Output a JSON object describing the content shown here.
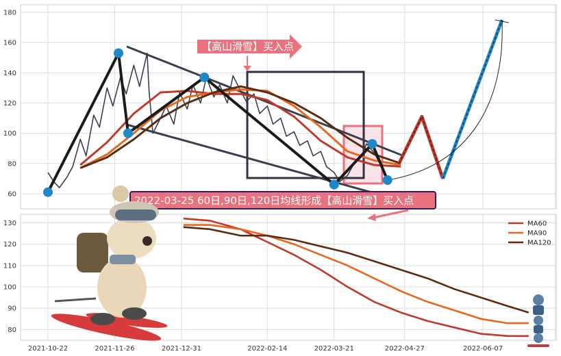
{
  "chart_data": [
    {
      "type": "line",
      "panel": "price",
      "ylim": [
        50,
        185
      ],
      "yticks": [
        60,
        80,
        100,
        120,
        140,
        160,
        180
      ],
      "grid": true,
      "x_dates": [
        "2021-10-22",
        "2021-11-26",
        "2021-12-31",
        "2022-02-14",
        "2022-03-21",
        "2022-04-27",
        "2022-06-07"
      ],
      "series": [
        {
          "role": "price",
          "color": "#3a3f4e",
          "points": [
            [
              "2021-10-22",
              74
            ],
            [
              "2021-10-25",
              68
            ],
            [
              "2021-10-28",
              64
            ],
            [
              "2021-11-01",
              71
            ],
            [
              "2021-11-04",
              78
            ],
            [
              "2021-11-08",
              96
            ],
            [
              "2021-11-11",
              85
            ],
            [
              "2021-11-15",
              112
            ],
            [
              "2021-11-18",
              104
            ],
            [
              "2021-11-22",
              130
            ],
            [
              "2021-11-25",
              118
            ],
            [
              "2021-11-29",
              137
            ],
            [
              "2021-12-02",
              126
            ],
            [
              "2021-12-06",
              145
            ],
            [
              "2021-12-09",
              131
            ],
            [
              "2021-12-13",
              153
            ],
            [
              "2021-12-14",
              128
            ],
            [
              "2021-12-16",
              100
            ],
            [
              "2021-12-20",
              110
            ],
            [
              "2021-12-23",
              118
            ],
            [
              "2021-12-27",
              106
            ],
            [
              "2021-12-30",
              127
            ],
            [
              "2022-01-03",
              116
            ],
            [
              "2022-01-06",
              132
            ],
            [
              "2022-01-10",
              120
            ],
            [
              "2022-01-13",
              137
            ],
            [
              "2022-01-17",
              124
            ],
            [
              "2022-01-20",
              132
            ],
            [
              "2022-01-24",
              120
            ],
            [
              "2022-01-27",
              138
            ],
            [
              "2022-01-31",
              128
            ],
            [
              "2022-02-03",
              121
            ],
            [
              "2022-02-07",
              126
            ],
            [
              "2022-02-10",
              113
            ],
            [
              "2022-02-14",
              118
            ],
            [
              "2022-02-17",
              106
            ],
            [
              "2022-02-21",
              110
            ],
            [
              "2022-02-24",
              98
            ],
            [
              "2022-02-28",
              101
            ],
            [
              "2022-03-03",
              92
            ],
            [
              "2022-03-07",
              95
            ],
            [
              "2022-03-10",
              85
            ],
            [
              "2022-03-14",
              88
            ],
            [
              "2022-03-17",
              78
            ],
            [
              "2022-03-21",
              74
            ],
            [
              "2022-03-24",
              68
            ],
            [
              "2022-03-28",
              72
            ],
            [
              "2022-03-31",
              79
            ],
            [
              "2022-04-04",
              84
            ],
            [
              "2022-04-07",
              93
            ],
            [
              "2022-04-11",
              87
            ],
            [
              "2022-04-14",
              80
            ],
            [
              "2022-04-18",
              69
            ]
          ]
        },
        {
          "role": "ma-red",
          "color": "#c0392b",
          "points": [
            [
              "2021-11-08",
              79
            ],
            [
              "2021-11-22",
              94
            ],
            [
              "2021-12-06",
              113
            ],
            [
              "2021-12-20",
              127
            ],
            [
              "2022-01-03",
              128
            ],
            [
              "2022-01-17",
              126
            ],
            [
              "2022-01-31",
              126
            ],
            [
              "2022-02-14",
              122
            ],
            [
              "2022-02-28",
              111
            ],
            [
              "2022-03-14",
              95
            ],
            [
              "2022-03-28",
              84
            ],
            [
              "2022-04-11",
              79
            ],
            [
              "2022-04-25",
              78
            ]
          ]
        },
        {
          "role": "ma-orange",
          "color": "#e8671e",
          "points": [
            [
              "2021-11-08",
              77
            ],
            [
              "2021-11-22",
              86
            ],
            [
              "2021-12-06",
              100
            ],
            [
              "2021-12-20",
              115
            ],
            [
              "2022-01-03",
              124
            ],
            [
              "2022-01-17",
              127
            ],
            [
              "2022-01-31",
              129
            ],
            [
              "2022-02-14",
              128
            ],
            [
              "2022-02-28",
              118
            ],
            [
              "2022-03-14",
              104
            ],
            [
              "2022-03-28",
              88
            ],
            [
              "2022-04-11",
              82
            ],
            [
              "2022-04-25",
              79
            ]
          ]
        },
        {
          "role": "ma-brown",
          "color": "#5a2c12",
          "points": [
            [
              "2021-11-08",
              77
            ],
            [
              "2021-11-22",
              84
            ],
            [
              "2021-12-06",
              96
            ],
            [
              "2021-12-20",
              110
            ],
            [
              "2022-01-03",
              120
            ],
            [
              "2022-01-17",
              127
            ],
            [
              "2022-01-31",
              131
            ],
            [
              "2022-02-14",
              127
            ],
            [
              "2022-02-28",
              120
            ],
            [
              "2022-03-14",
              110
            ],
            [
              "2022-03-28",
              97
            ],
            [
              "2022-04-11",
              86
            ],
            [
              "2022-04-25",
              80
            ]
          ]
        },
        {
          "role": "projection",
          "color": "#c0392b",
          "points": [
            [
              "2022-04-24",
              80
            ],
            [
              "2022-05-06",
              111
            ],
            [
              "2022-05-17",
              70
            ]
          ]
        },
        {
          "role": "projection-up",
          "color": "#1e88c8",
          "points": [
            [
              "2022-05-17",
              70
            ],
            [
              "2022-06-17",
              175
            ]
          ]
        }
      ],
      "pivots": [
        [
          "2021-10-22",
          61
        ],
        [
          "2021-11-28",
          153
        ],
        [
          "2021-12-03",
          100
        ],
        [
          "2022-01-12",
          137
        ],
        [
          "2022-03-21",
          66
        ],
        [
          "2022-04-10",
          93
        ],
        [
          "2022-04-18",
          69
        ]
      ],
      "callout": {
        "text": "【高山滑雪】买入点",
        "arrow_date": "2022-02-15",
        "arrow_value": 140
      }
    },
    {
      "type": "line",
      "panel": "moving-averages",
      "ylim": [
        75,
        134
      ],
      "yticks": [
        80,
        90,
        100,
        110,
        120,
        130
      ],
      "xticks": [
        "2021-10-22",
        "2021-11-26",
        "2021-12-31",
        "2022-02-14",
        "2022-03-21",
        "2022-04-27",
        "2022-06-07"
      ],
      "grid": true,
      "legend_position": "top-right",
      "series": [
        {
          "name": "MA60",
          "color": "#c0392b",
          "points": [
            [
              "2022-01-01",
              132
            ],
            [
              "2022-01-15",
              131
            ],
            [
              "2022-01-31",
              127
            ],
            [
              "2022-02-14",
              121
            ],
            [
              "2022-02-28",
              115
            ],
            [
              "2022-03-14",
              108
            ],
            [
              "2022-03-28",
              100
            ],
            [
              "2022-04-11",
              93
            ],
            [
              "2022-04-25",
              88
            ],
            [
              "2022-05-09",
              84
            ],
            [
              "2022-05-23",
              81
            ],
            [
              "2022-06-06",
              78
            ],
            [
              "2022-06-20",
              77
            ],
            [
              "2022-07-01",
              77
            ]
          ]
        },
        {
          "name": "MA90",
          "color": "#e8671e",
          "points": [
            [
              "2022-01-01",
              129
            ],
            [
              "2022-01-15",
              129
            ],
            [
              "2022-01-31",
              127
            ],
            [
              "2022-02-14",
              124
            ],
            [
              "2022-02-28",
              120
            ],
            [
              "2022-03-14",
              115
            ],
            [
              "2022-03-28",
              110
            ],
            [
              "2022-04-11",
              104
            ],
            [
              "2022-04-25",
              98
            ],
            [
              "2022-05-09",
              93
            ],
            [
              "2022-05-23",
              89
            ],
            [
              "2022-06-06",
              85
            ],
            [
              "2022-06-20",
              83
            ],
            [
              "2022-07-01",
              83
            ]
          ]
        },
        {
          "name": "MA120",
          "color": "#5a2c12",
          "points": [
            [
              "2022-01-01",
              128
            ],
            [
              "2022-01-15",
              127
            ],
            [
              "2022-01-31",
              124
            ],
            [
              "2022-02-14",
              124
            ],
            [
              "2022-02-28",
              122
            ],
            [
              "2022-03-14",
              119
            ],
            [
              "2022-03-28",
              116
            ],
            [
              "2022-04-11",
              112
            ],
            [
              "2022-04-25",
              108
            ],
            [
              "2022-05-09",
              104
            ],
            [
              "2022-05-23",
              99
            ],
            [
              "2022-06-06",
              95
            ],
            [
              "2022-06-20",
              91
            ],
            [
              "2022-07-01",
              88
            ]
          ]
        }
      ],
      "callout": {
        "text": "2022-03-25 60日,90日,120日均线形成【高山滑雪】买入点"
      }
    }
  ],
  "colors": {
    "accent_pink": "#e8727e",
    "box_dark": "#2d3140",
    "pivot_blue": "#1e88c8"
  },
  "icons": {
    "mascot": "skiing-dog-illustration",
    "mini_mascots": "skiing-robot-icons"
  }
}
